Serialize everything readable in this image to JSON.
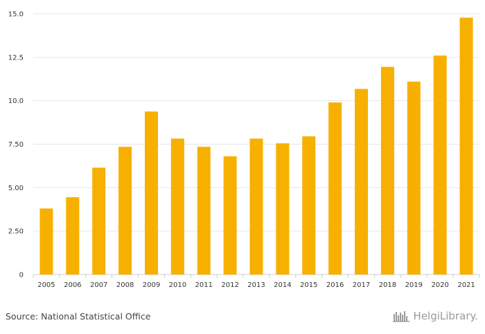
{
  "chart_data": {
    "type": "bar",
    "categories": [
      "2005",
      "2006",
      "2007",
      "2008",
      "2009",
      "2010",
      "2011",
      "2012",
      "2013",
      "2014",
      "2015",
      "2016",
      "2017",
      "2018",
      "2019",
      "2020",
      "2021"
    ],
    "values": [
      3.8,
      4.45,
      6.15,
      7.35,
      9.38,
      7.82,
      7.35,
      6.8,
      7.82,
      7.55,
      7.95,
      9.9,
      10.68,
      11.95,
      11.1,
      12.6,
      14.78
    ],
    "ylim": [
      0,
      15
    ],
    "yticks": [
      "0",
      "2.50",
      "5.00",
      "7.50",
      "10.0",
      "12.5",
      "15.0"
    ],
    "ytick_values": [
      0,
      2.5,
      5,
      7.5,
      10,
      12.5,
      15
    ],
    "grid": true,
    "bar_color": "#F7B000",
    "grid_color": "#E6E6E6"
  },
  "footer": {
    "source": "Source: National Statistical Office",
    "brand": "HelgiLibrary."
  },
  "colors": {
    "brand_gray": "#9A9A9A"
  }
}
